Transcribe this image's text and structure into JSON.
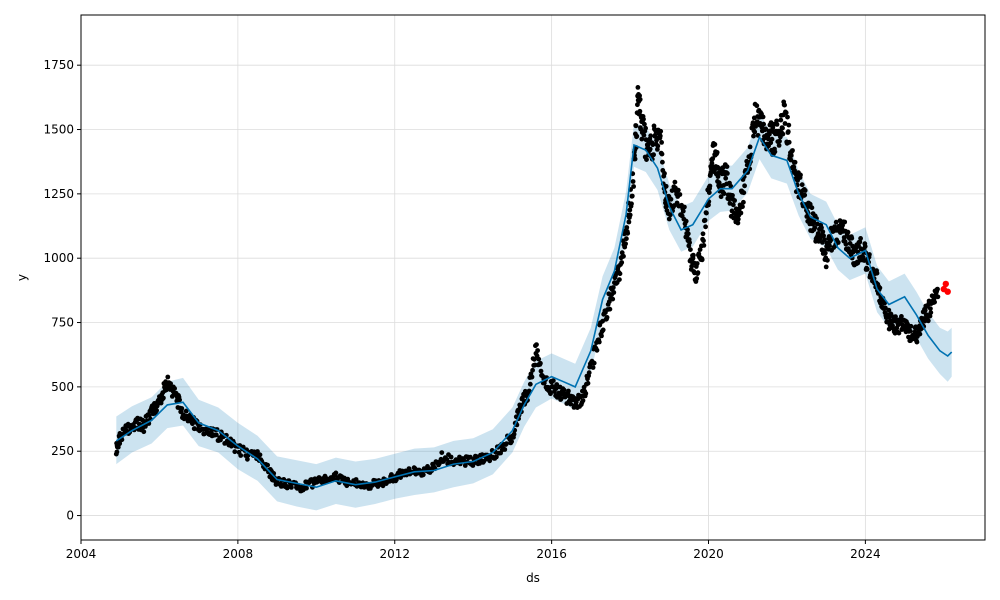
{
  "chart_data": {
    "type": "line",
    "title": "",
    "xlabel": "ds",
    "ylabel": "y",
    "xlim": [
      2004.0,
      2027.05
    ],
    "ylim": [
      -95,
      1945
    ],
    "x_ticks": [
      2004,
      2008,
      2012,
      2016,
      2020,
      2024
    ],
    "x_tick_labels": [
      "2004",
      "2008",
      "2012",
      "2016",
      "2020",
      "2024"
    ],
    "y_ticks": [
      0,
      250,
      500,
      750,
      1000,
      1250,
      1500,
      1750
    ],
    "y_tick_labels": [
      "0",
      "250",
      "500",
      "750",
      "1000",
      "1250",
      "1500",
      "1750"
    ],
    "grid": true,
    "colors": {
      "forecast": "#0072b2",
      "interval": "#0072b2",
      "observed": "#000000",
      "recent": "#ff0000"
    },
    "forecast": {
      "x": [
        2004.9,
        2005.3,
        2005.8,
        2006.2,
        2006.6,
        2007.0,
        2007.5,
        2008.0,
        2008.5,
        2009.0,
        2009.5,
        2010.0,
        2010.5,
        2011.0,
        2011.5,
        2012.0,
        2012.5,
        2013.0,
        2013.5,
        2014.0,
        2014.5,
        2015.0,
        2015.3,
        2015.6,
        2016.0,
        2016.3,
        2016.6,
        2017.0,
        2017.3,
        2017.6,
        2017.9,
        2018.1,
        2018.4,
        2018.7,
        2019.0,
        2019.3,
        2019.6,
        2020.0,
        2020.3,
        2020.6,
        2021.0,
        2021.3,
        2021.6,
        2022.0,
        2022.3,
        2022.6,
        2023.0,
        2023.3,
        2023.6,
        2024.0,
        2024.3,
        2024.6,
        2025.0,
        2025.3,
        2025.6,
        2025.9,
        2026.1,
        2026.2
      ],
      "y": [
        290,
        330,
        370,
        430,
        440,
        360,
        330,
        270,
        220,
        140,
        125,
        110,
        135,
        120,
        130,
        150,
        170,
        175,
        200,
        210,
        245,
        330,
        430,
        510,
        540,
        520,
        500,
        640,
        840,
        950,
        1170,
        1440,
        1420,
        1350,
        1200,
        1110,
        1130,
        1230,
        1270,
        1270,
        1340,
        1470,
        1400,
        1380,
        1250,
        1160,
        1130,
        1040,
        1000,
        1030,
        880,
        820,
        850,
        780,
        700,
        640,
        620,
        635
      ],
      "lower": [
        200,
        245,
        280,
        340,
        350,
        270,
        245,
        180,
        135,
        55,
        35,
        20,
        45,
        30,
        45,
        65,
        80,
        90,
        110,
        125,
        160,
        245,
        345,
        420,
        455,
        435,
        410,
        555,
        755,
        860,
        1080,
        1355,
        1335,
        1265,
        1110,
        1025,
        1045,
        1145,
        1180,
        1185,
        1255,
        1385,
        1310,
        1290,
        1165,
        1075,
        1040,
        955,
        915,
        940,
        790,
        730,
        760,
        690,
        610,
        550,
        520,
        540
      ],
      "upper": [
        385,
        425,
        460,
        520,
        535,
        450,
        420,
        360,
        310,
        230,
        215,
        200,
        225,
        210,
        220,
        240,
        260,
        265,
        290,
        300,
        335,
        420,
        520,
        600,
        630,
        610,
        590,
        730,
        930,
        1040,
        1260,
        1525,
        1510,
        1440,
        1290,
        1200,
        1220,
        1320,
        1360,
        1360,
        1430,
        1560,
        1490,
        1470,
        1340,
        1250,
        1220,
        1130,
        1090,
        1120,
        970,
        910,
        940,
        870,
        790,
        730,
        715,
        730
      ]
    },
    "observed": {
      "x": [
        2004.9,
        2005.0,
        2005.2,
        2005.4,
        2005.6,
        2005.8,
        2006.0,
        2006.2,
        2006.4,
        2006.6,
        2006.8,
        2007.0,
        2007.3,
        2007.6,
        2007.9,
        2008.2,
        2008.5,
        2008.8,
        2009.0,
        2009.3,
        2009.6,
        2009.9,
        2010.2,
        2010.5,
        2010.8,
        2011.1,
        2011.4,
        2011.7,
        2012.0,
        2012.3,
        2012.6,
        2012.9,
        2013.2,
        2013.5,
        2013.8,
        2014.1,
        2014.4,
        2014.7,
        2015.0,
        2015.2,
        2015.4,
        2015.6,
        2015.8,
        2016.0,
        2016.2,
        2016.4,
        2016.6,
        2016.8,
        2017.0,
        2017.2,
        2017.4,
        2017.6,
        2017.8,
        2017.95,
        2018.1,
        2018.2,
        2018.3,
        2018.45,
        2018.6,
        2018.75,
        2018.9,
        2019.0,
        2019.2,
        2019.4,
        2019.55,
        2019.7,
        2019.85,
        2020.0,
        2020.1,
        2020.2,
        2020.3,
        2020.45,
        2020.6,
        2020.75,
        2020.9,
        2021.05,
        2021.2,
        2021.35,
        2021.5,
        2021.65,
        2021.8,
        2021.95,
        2022.1,
        2022.25,
        2022.4,
        2022.55,
        2022.7,
        2022.85,
        2023.0,
        2023.15,
        2023.3,
        2023.45,
        2023.6,
        2023.75,
        2023.9,
        2024.05,
        2024.2,
        2024.35,
        2024.5,
        2024.65,
        2024.8,
        2024.95,
        2025.1,
        2025.25,
        2025.4,
        2025.55,
        2025.7,
        2025.85
      ],
      "y": [
        260,
        300,
        340,
        360,
        350,
        400,
        440,
        520,
        470,
        400,
        370,
        340,
        320,
        310,
        270,
        240,
        230,
        170,
        130,
        120,
        110,
        125,
        140,
        150,
        130,
        125,
        120,
        130,
        150,
        175,
        165,
        175,
        225,
        215,
        210,
        215,
        225,
        260,
        310,
        420,
        480,
        640,
        520,
        500,
        480,
        460,
        440,
        460,
        570,
        700,
        800,
        880,
        1000,
        1150,
        1350,
        1600,
        1520,
        1400,
        1450,
        1500,
        1250,
        1200,
        1260,
        1150,
        1000,
        940,
        1050,
        1250,
        1400,
        1380,
        1280,
        1320,
        1200,
        1150,
        1280,
        1400,
        1560,
        1500,
        1480,
        1460,
        1500,
        1560,
        1400,
        1300,
        1260,
        1180,
        1120,
        1100,
        1000,
        1080,
        1100,
        1100,
        1050,
        1000,
        1050,
        980,
        950,
        880,
        780,
        750,
        740,
        750,
        720,
        690,
        730,
        780,
        820,
        850
      ]
    },
    "recent": {
      "x": [
        2026.0,
        2026.05,
        2026.1
      ],
      "y": [
        880,
        900,
        870
      ]
    }
  }
}
